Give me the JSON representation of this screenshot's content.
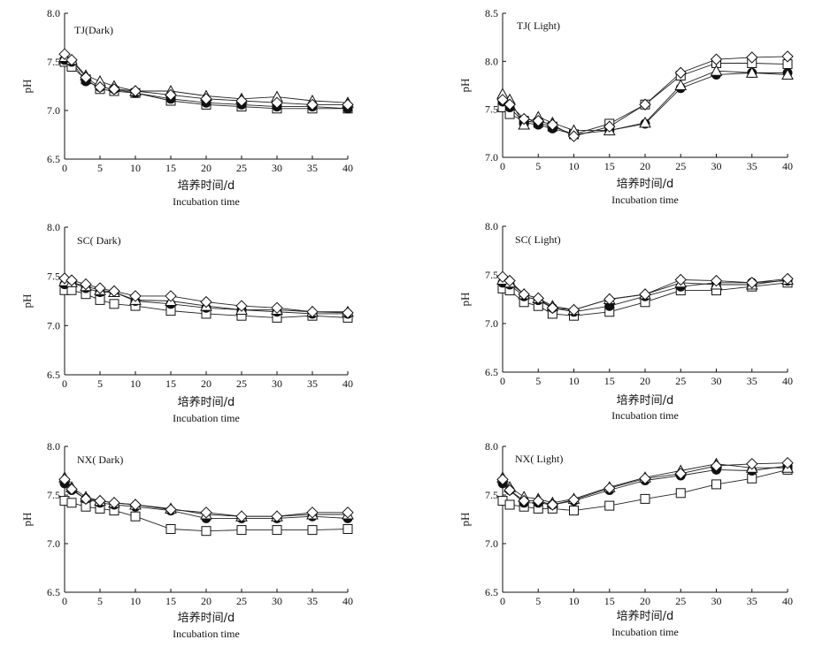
{
  "chart_data": [
    {
      "type": "line",
      "title": "TJ(Dark)",
      "xlabel_cn": "培养时间/d",
      "xlabel_en": "Incubation time",
      "ylabel": "pH",
      "ylim": [
        6.5,
        8.0
      ],
      "yticks": [
        "6.5",
        "7.0",
        "7.5",
        "8.0"
      ],
      "xlim": [
        0,
        40
      ],
      "xticks": [
        "0",
        "5",
        "10",
        "15",
        "20",
        "25",
        "30",
        "35",
        "40"
      ],
      "x": [
        0,
        1,
        3,
        5,
        7,
        10,
        15,
        20,
        25,
        30,
        35,
        40
      ],
      "series": [
        {
          "marker": "square",
          "values": [
            7.5,
            7.45,
            7.32,
            7.22,
            7.2,
            7.18,
            7.1,
            7.06,
            7.04,
            7.02,
            7.02,
            7.02
          ]
        },
        {
          "marker": "circle",
          "values": [
            7.52,
            7.5,
            7.3,
            7.24,
            7.22,
            7.18,
            7.12,
            7.08,
            7.06,
            7.04,
            7.04,
            7.02
          ]
        },
        {
          "marker": "triangle",
          "values": [
            7.55,
            7.52,
            7.36,
            7.3,
            7.25,
            7.2,
            7.2,
            7.15,
            7.12,
            7.14,
            7.1,
            7.08
          ]
        },
        {
          "marker": "diamond",
          "values": [
            7.58,
            7.52,
            7.34,
            7.24,
            7.22,
            7.2,
            7.16,
            7.12,
            7.1,
            7.08,
            7.06,
            7.06
          ]
        }
      ]
    },
    {
      "type": "line",
      "title": "TJ( Light)",
      "xlabel_cn": "培养时间/d",
      "xlabel_en": "Incubation time",
      "ylabel": "pH",
      "ylim": [
        7.0,
        8.5
      ],
      "yticks": [
        "7.0",
        "7.5",
        "8.0",
        "8.5"
      ],
      "xlim": [
        0,
        40
      ],
      "xticks": [
        "0",
        "5",
        "10",
        "15",
        "20",
        "25",
        "30",
        "35",
        "40"
      ],
      "x": [
        0,
        1,
        3,
        5,
        7,
        10,
        15,
        20,
        25,
        30,
        35,
        40
      ],
      "series": [
        {
          "marker": "square",
          "values": [
            7.52,
            7.45,
            7.38,
            7.36,
            7.32,
            7.24,
            7.35,
            7.55,
            7.85,
            7.98,
            7.98,
            7.97
          ]
        },
        {
          "marker": "circle",
          "values": [
            7.58,
            7.52,
            7.36,
            7.34,
            7.3,
            7.24,
            7.28,
            7.35,
            7.72,
            7.86,
            7.88,
            7.88
          ]
        },
        {
          "marker": "triangle",
          "values": [
            7.66,
            7.6,
            7.34,
            7.42,
            7.36,
            7.28,
            7.28,
            7.36,
            7.75,
            7.9,
            7.88,
            7.86
          ]
        },
        {
          "marker": "diamond",
          "values": [
            7.6,
            7.55,
            7.4,
            7.38,
            7.34,
            7.22,
            7.32,
            7.55,
            7.88,
            8.02,
            8.04,
            8.05
          ]
        }
      ]
    },
    {
      "type": "line",
      "title": "SC( Dark)",
      "xlabel_cn": "培养时间/d",
      "xlabel_en": "Incubation time",
      "ylabel": "pH",
      "ylim": [
        6.5,
        8.0
      ],
      "yticks": [
        "6.5",
        "7.0",
        "7.5",
        "8.0"
      ],
      "xlim": [
        0,
        40
      ],
      "xticks": [
        "0",
        "5",
        "10",
        "15",
        "20",
        "25",
        "30",
        "35",
        "40"
      ],
      "x": [
        0,
        1,
        3,
        5,
        7,
        10,
        15,
        20,
        25,
        30,
        35,
        40
      ],
      "series": [
        {
          "marker": "square",
          "values": [
            7.36,
            7.36,
            7.32,
            7.26,
            7.22,
            7.2,
            7.15,
            7.12,
            7.1,
            7.08,
            7.1,
            7.08
          ]
        },
        {
          "marker": "circle",
          "values": [
            7.42,
            7.44,
            7.38,
            7.34,
            7.34,
            7.25,
            7.22,
            7.18,
            7.16,
            7.14,
            7.12,
            7.12
          ]
        },
        {
          "marker": "triangle",
          "values": [
            7.45,
            7.44,
            7.4,
            7.36,
            7.34,
            7.26,
            7.25,
            7.2,
            7.16,
            7.16,
            7.14,
            7.14
          ]
        },
        {
          "marker": "diamond",
          "values": [
            7.48,
            7.46,
            7.42,
            7.38,
            7.35,
            7.3,
            7.3,
            7.24,
            7.2,
            7.18,
            7.14,
            7.13
          ]
        }
      ]
    },
    {
      "type": "line",
      "title": "SC( Light)",
      "xlabel_cn": "培养时间/d",
      "xlabel_en": "Incubation time",
      "ylabel": "pH",
      "ylim": [
        6.5,
        8.0
      ],
      "yticks": [
        "6.5",
        "7.0",
        "7.5",
        "8.0"
      ],
      "xlim": [
        0,
        40
      ],
      "xticks": [
        "0",
        "5",
        "10",
        "15",
        "20",
        "25",
        "30",
        "35",
        "40"
      ],
      "x": [
        0,
        1,
        3,
        5,
        7,
        10,
        15,
        20,
        25,
        30,
        35,
        40
      ],
      "series": [
        {
          "marker": "square",
          "values": [
            7.36,
            7.34,
            7.22,
            7.18,
            7.1,
            7.08,
            7.12,
            7.22,
            7.34,
            7.34,
            7.38,
            7.42
          ]
        },
        {
          "marker": "circle",
          "values": [
            7.42,
            7.4,
            7.28,
            7.24,
            7.16,
            7.12,
            7.18,
            7.28,
            7.38,
            7.42,
            7.42,
            7.44
          ]
        },
        {
          "marker": "triangle",
          "values": [
            7.45,
            7.42,
            7.3,
            7.26,
            7.18,
            7.14,
            7.25,
            7.3,
            7.42,
            7.4,
            7.4,
            7.45
          ]
        },
        {
          "marker": "diamond",
          "values": [
            7.48,
            7.44,
            7.3,
            7.26,
            7.16,
            7.14,
            7.25,
            7.3,
            7.45,
            7.44,
            7.42,
            7.46
          ]
        }
      ]
    },
    {
      "type": "line",
      "title": "NX( Dark)",
      "xlabel_cn": "培养时间/d",
      "xlabel_en": "Incubation time",
      "ylabel": "pH",
      "ylim": [
        6.5,
        8.0
      ],
      "yticks": [
        "6.5",
        "7.0",
        "7.5",
        "8.0"
      ],
      "xlim": [
        0,
        40
      ],
      "xticks": [
        "0",
        "5",
        "10",
        "15",
        "20",
        "25",
        "30",
        "35",
        "40"
      ],
      "x": [
        0,
        1,
        3,
        5,
        7,
        10,
        15,
        20,
        25,
        30,
        35,
        40
      ],
      "series": [
        {
          "marker": "square",
          "values": [
            7.44,
            7.42,
            7.38,
            7.36,
            7.34,
            7.28,
            7.15,
            7.13,
            7.14,
            7.14,
            7.14,
            7.15
          ]
        },
        {
          "marker": "circle",
          "values": [
            7.62,
            7.55,
            7.46,
            7.42,
            7.4,
            7.38,
            7.34,
            7.26,
            7.26,
            7.26,
            7.28,
            7.26
          ]
        },
        {
          "marker": "triangle",
          "values": [
            7.68,
            7.58,
            7.48,
            7.44,
            7.42,
            7.4,
            7.36,
            7.3,
            7.28,
            7.28,
            7.3,
            7.3
          ]
        },
        {
          "marker": "diamond",
          "values": [
            7.66,
            7.56,
            7.46,
            7.44,
            7.42,
            7.4,
            7.35,
            7.32,
            7.28,
            7.28,
            7.32,
            7.32
          ]
        }
      ]
    },
    {
      "type": "line",
      "title": "NX( Light)",
      "xlabel_cn": "培养时间/d",
      "xlabel_en": "Incubation time",
      "ylabel": "pH",
      "ylim": [
        6.5,
        8.0
      ],
      "yticks": [
        "6.5",
        "7.0",
        "7.5",
        "8.0"
      ],
      "xlim": [
        0,
        40
      ],
      "xticks": [
        "0",
        "5",
        "10",
        "15",
        "20",
        "25",
        "30",
        "35",
        "40"
      ],
      "x": [
        0,
        1,
        3,
        5,
        7,
        10,
        15,
        20,
        25,
        30,
        35,
        40
      ],
      "series": [
        {
          "marker": "square",
          "values": [
            7.44,
            7.4,
            7.38,
            7.36,
            7.36,
            7.34,
            7.39,
            7.46,
            7.52,
            7.61,
            7.67,
            7.76
          ]
        },
        {
          "marker": "circle",
          "values": [
            7.62,
            7.55,
            7.42,
            7.42,
            7.4,
            7.44,
            7.55,
            7.65,
            7.7,
            7.76,
            7.75,
            7.8
          ]
        },
        {
          "marker": "triangle",
          "values": [
            7.68,
            7.58,
            7.48,
            7.46,
            7.42,
            7.46,
            7.58,
            7.68,
            7.75,
            7.82,
            7.78,
            7.78
          ]
        },
        {
          "marker": "diamond",
          "values": [
            7.66,
            7.55,
            7.44,
            7.44,
            7.4,
            7.45,
            7.57,
            7.67,
            7.72,
            7.8,
            7.82,
            7.83
          ]
        }
      ]
    }
  ]
}
